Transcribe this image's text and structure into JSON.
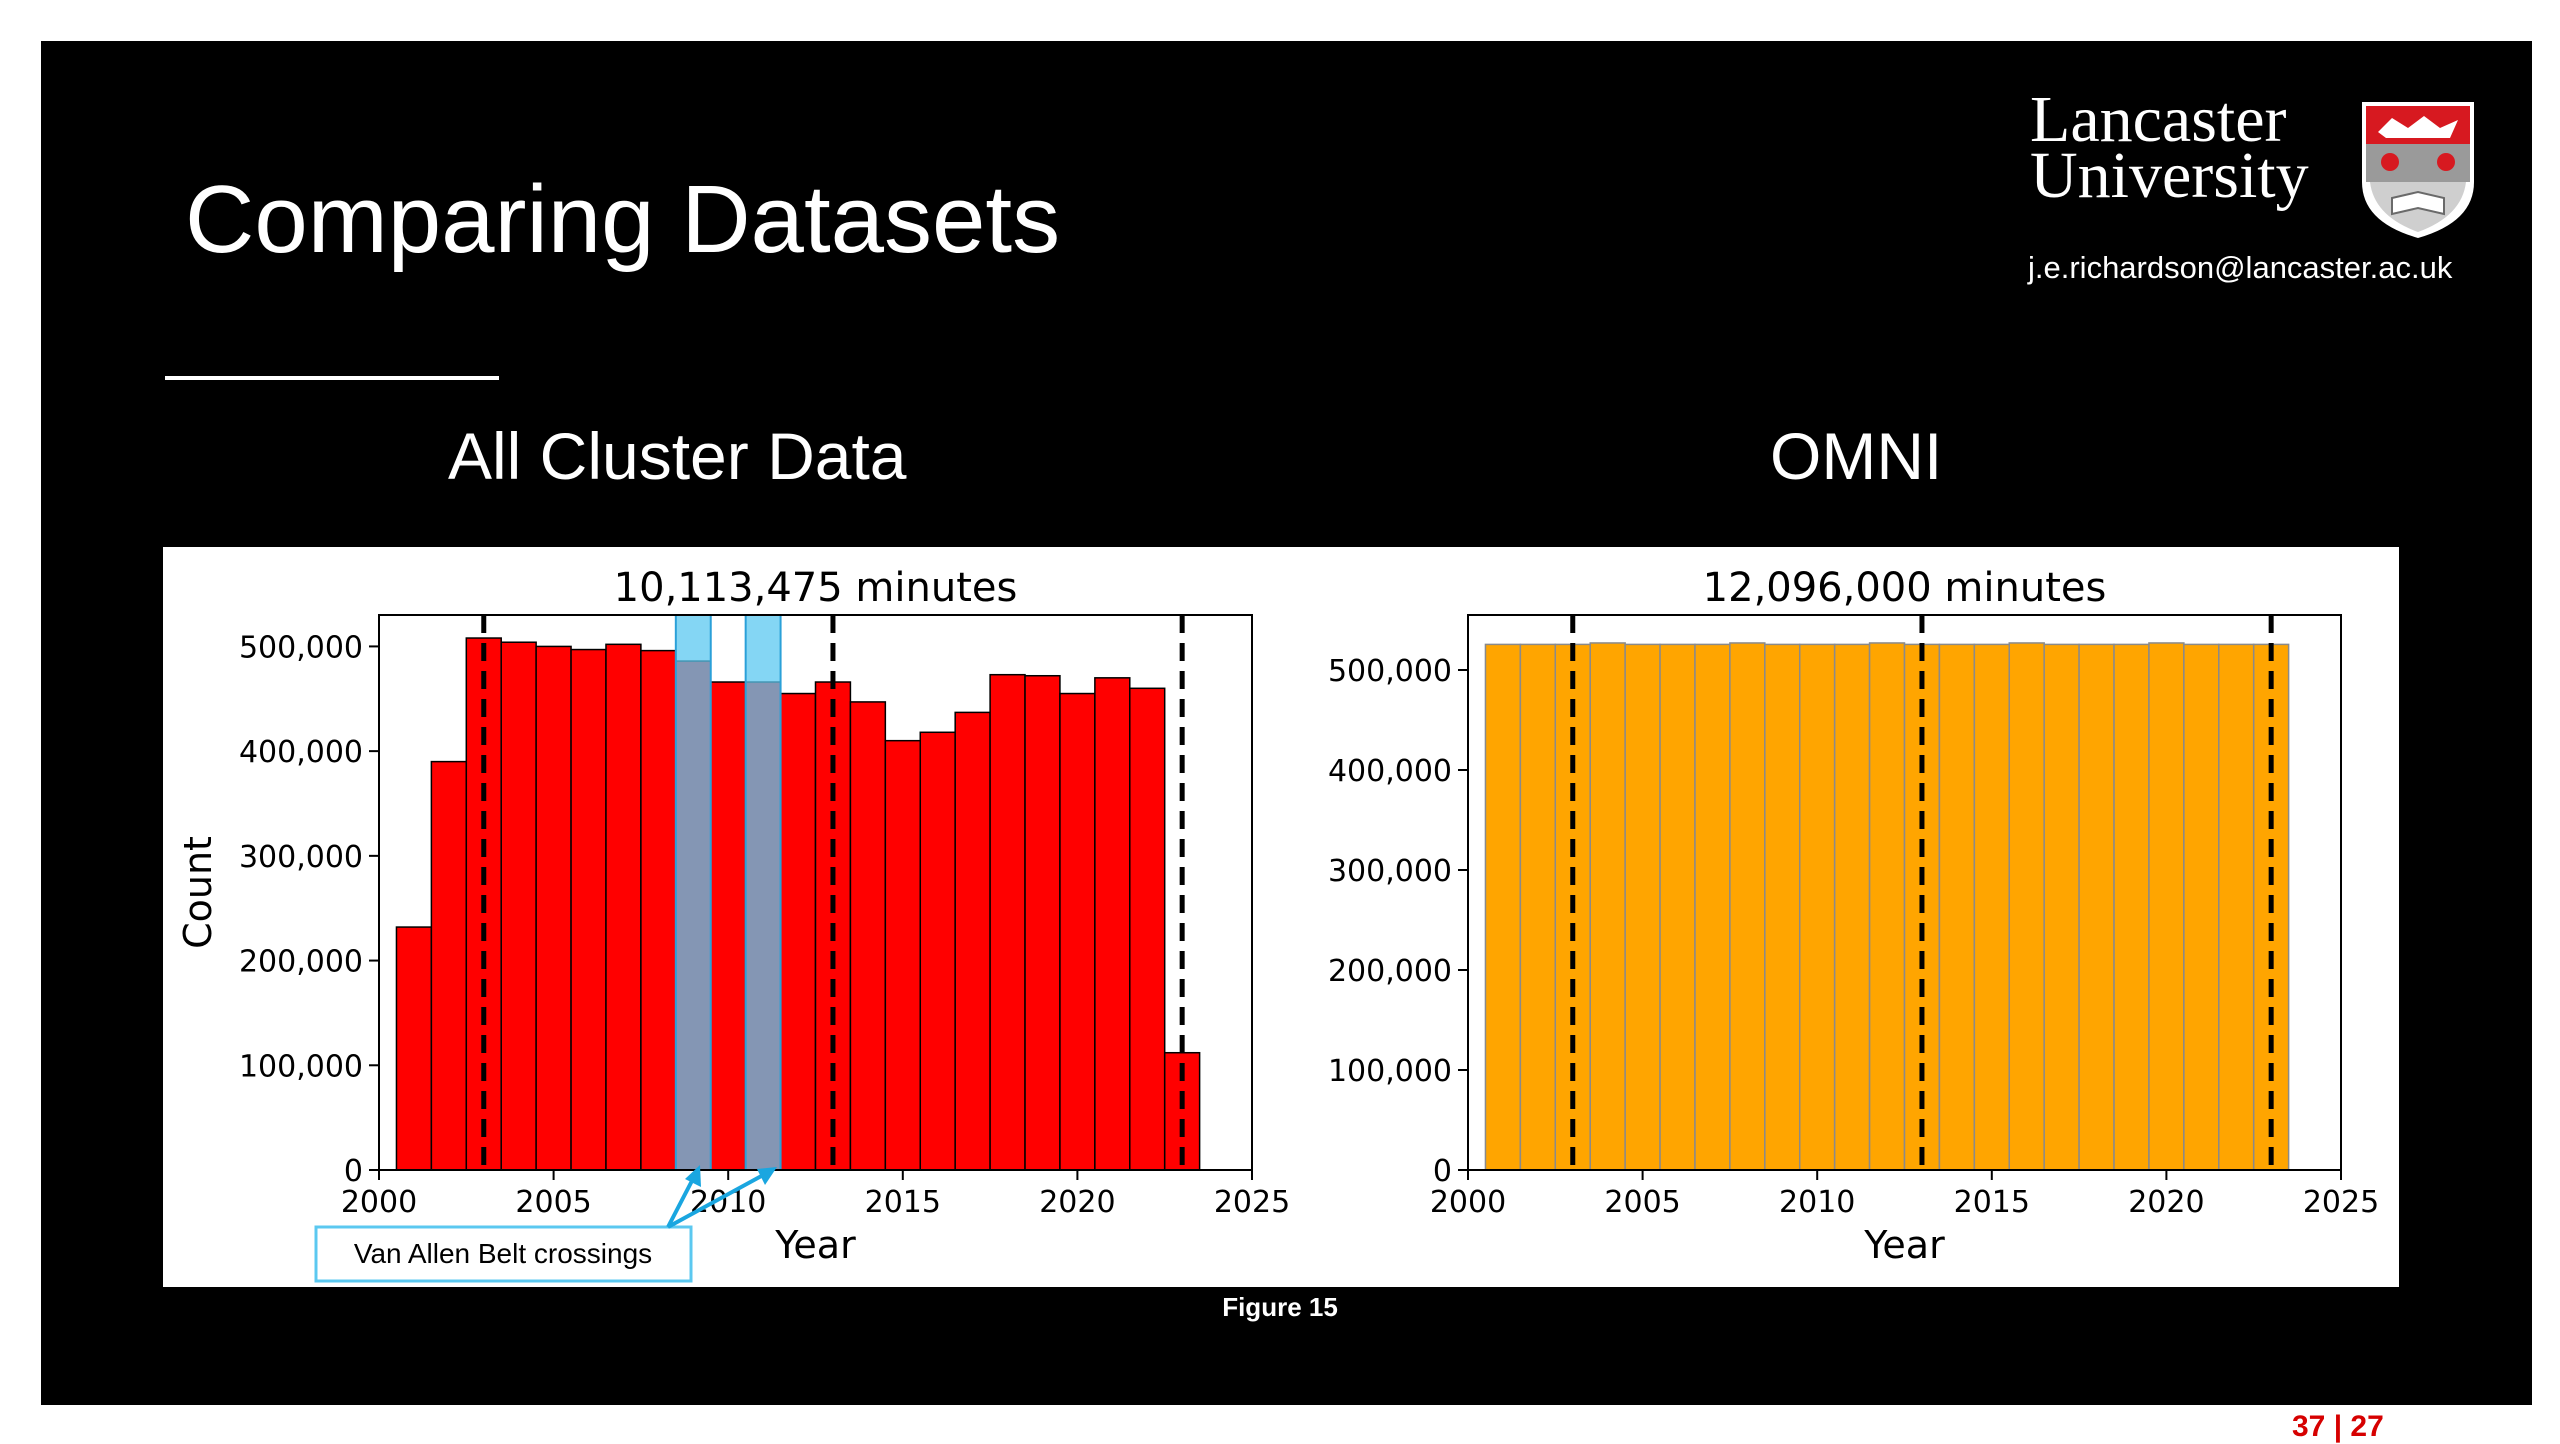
{
  "slide": {
    "title": "Comparing Datasets",
    "logo_line1": "Lancaster",
    "logo_line2": "University",
    "email": "j.e.richardson@lancaster.ac.uk",
    "left_heading": "All Cluster Data",
    "right_heading": "OMNI",
    "caption": "Figure 15",
    "page_number": "37 | 27",
    "annotation": "Van Allen Belt crossings"
  },
  "colors": {
    "slide_bg": "#000000",
    "cluster_bar": "#ff0000",
    "omni_bar": "#ffa500",
    "highlight": "#5bc8f0",
    "annotation_arrow": "#1aa6e0",
    "page_number": "#d60000"
  },
  "chart_data": [
    {
      "type": "bar",
      "name": "cluster",
      "title": "10,113,475 minutes",
      "xlabel": "Year",
      "ylabel": "Count",
      "xlim": [
        2000,
        2025
      ],
      "ylim": [
        0,
        530000
      ],
      "xticks": [
        2000,
        2005,
        2010,
        2015,
        2020,
        2025
      ],
      "yticks": [
        0,
        100000,
        200000,
        300000,
        400000,
        500000
      ],
      "ytick_labels": [
        "0",
        "100,000",
        "200,000",
        "300,000",
        "400,000",
        "500,000"
      ],
      "x": [
        2001,
        2002,
        2003,
        2004,
        2005,
        2006,
        2007,
        2008,
        2009,
        2010,
        2011,
        2012,
        2013,
        2014,
        2015,
        2016,
        2017,
        2018,
        2019,
        2020,
        2021,
        2022,
        2023
      ],
      "values": [
        232000,
        390000,
        508000,
        504000,
        500000,
        497000,
        502000,
        496000,
        486000,
        466000,
        466000,
        455000,
        466000,
        447000,
        410000,
        418000,
        437000,
        473000,
        472000,
        455000,
        470000,
        460000,
        112000
      ],
      "vlines": [
        2003,
        2013,
        2023
      ],
      "highlight_bins": [
        2009,
        2011
      ]
    },
    {
      "type": "bar",
      "name": "omni",
      "title": "12,096,000 minutes",
      "xlabel": "Year",
      "ylabel": "",
      "xlim": [
        2000,
        2025
      ],
      "ylim": [
        0,
        555000
      ],
      "xticks": [
        2000,
        2005,
        2010,
        2015,
        2020,
        2025
      ],
      "yticks": [
        0,
        100000,
        200000,
        300000,
        400000,
        500000
      ],
      "ytick_labels": [
        "0",
        "100,000",
        "200,000",
        "300,000",
        "400,000",
        "500,000"
      ],
      "x": [
        2001,
        2002,
        2003,
        2004,
        2005,
        2006,
        2007,
        2008,
        2009,
        2010,
        2011,
        2012,
        2013,
        2014,
        2015,
        2016,
        2017,
        2018,
        2019,
        2020,
        2021,
        2022,
        2023
      ],
      "values": [
        525600,
        525600,
        525600,
        527040,
        525600,
        525600,
        525600,
        527040,
        525600,
        525600,
        525600,
        527040,
        525600,
        525600,
        525600,
        527040,
        525600,
        525600,
        525600,
        527040,
        525600,
        525600,
        525600
      ],
      "vlines": [
        2003,
        2013,
        2023
      ]
    }
  ]
}
